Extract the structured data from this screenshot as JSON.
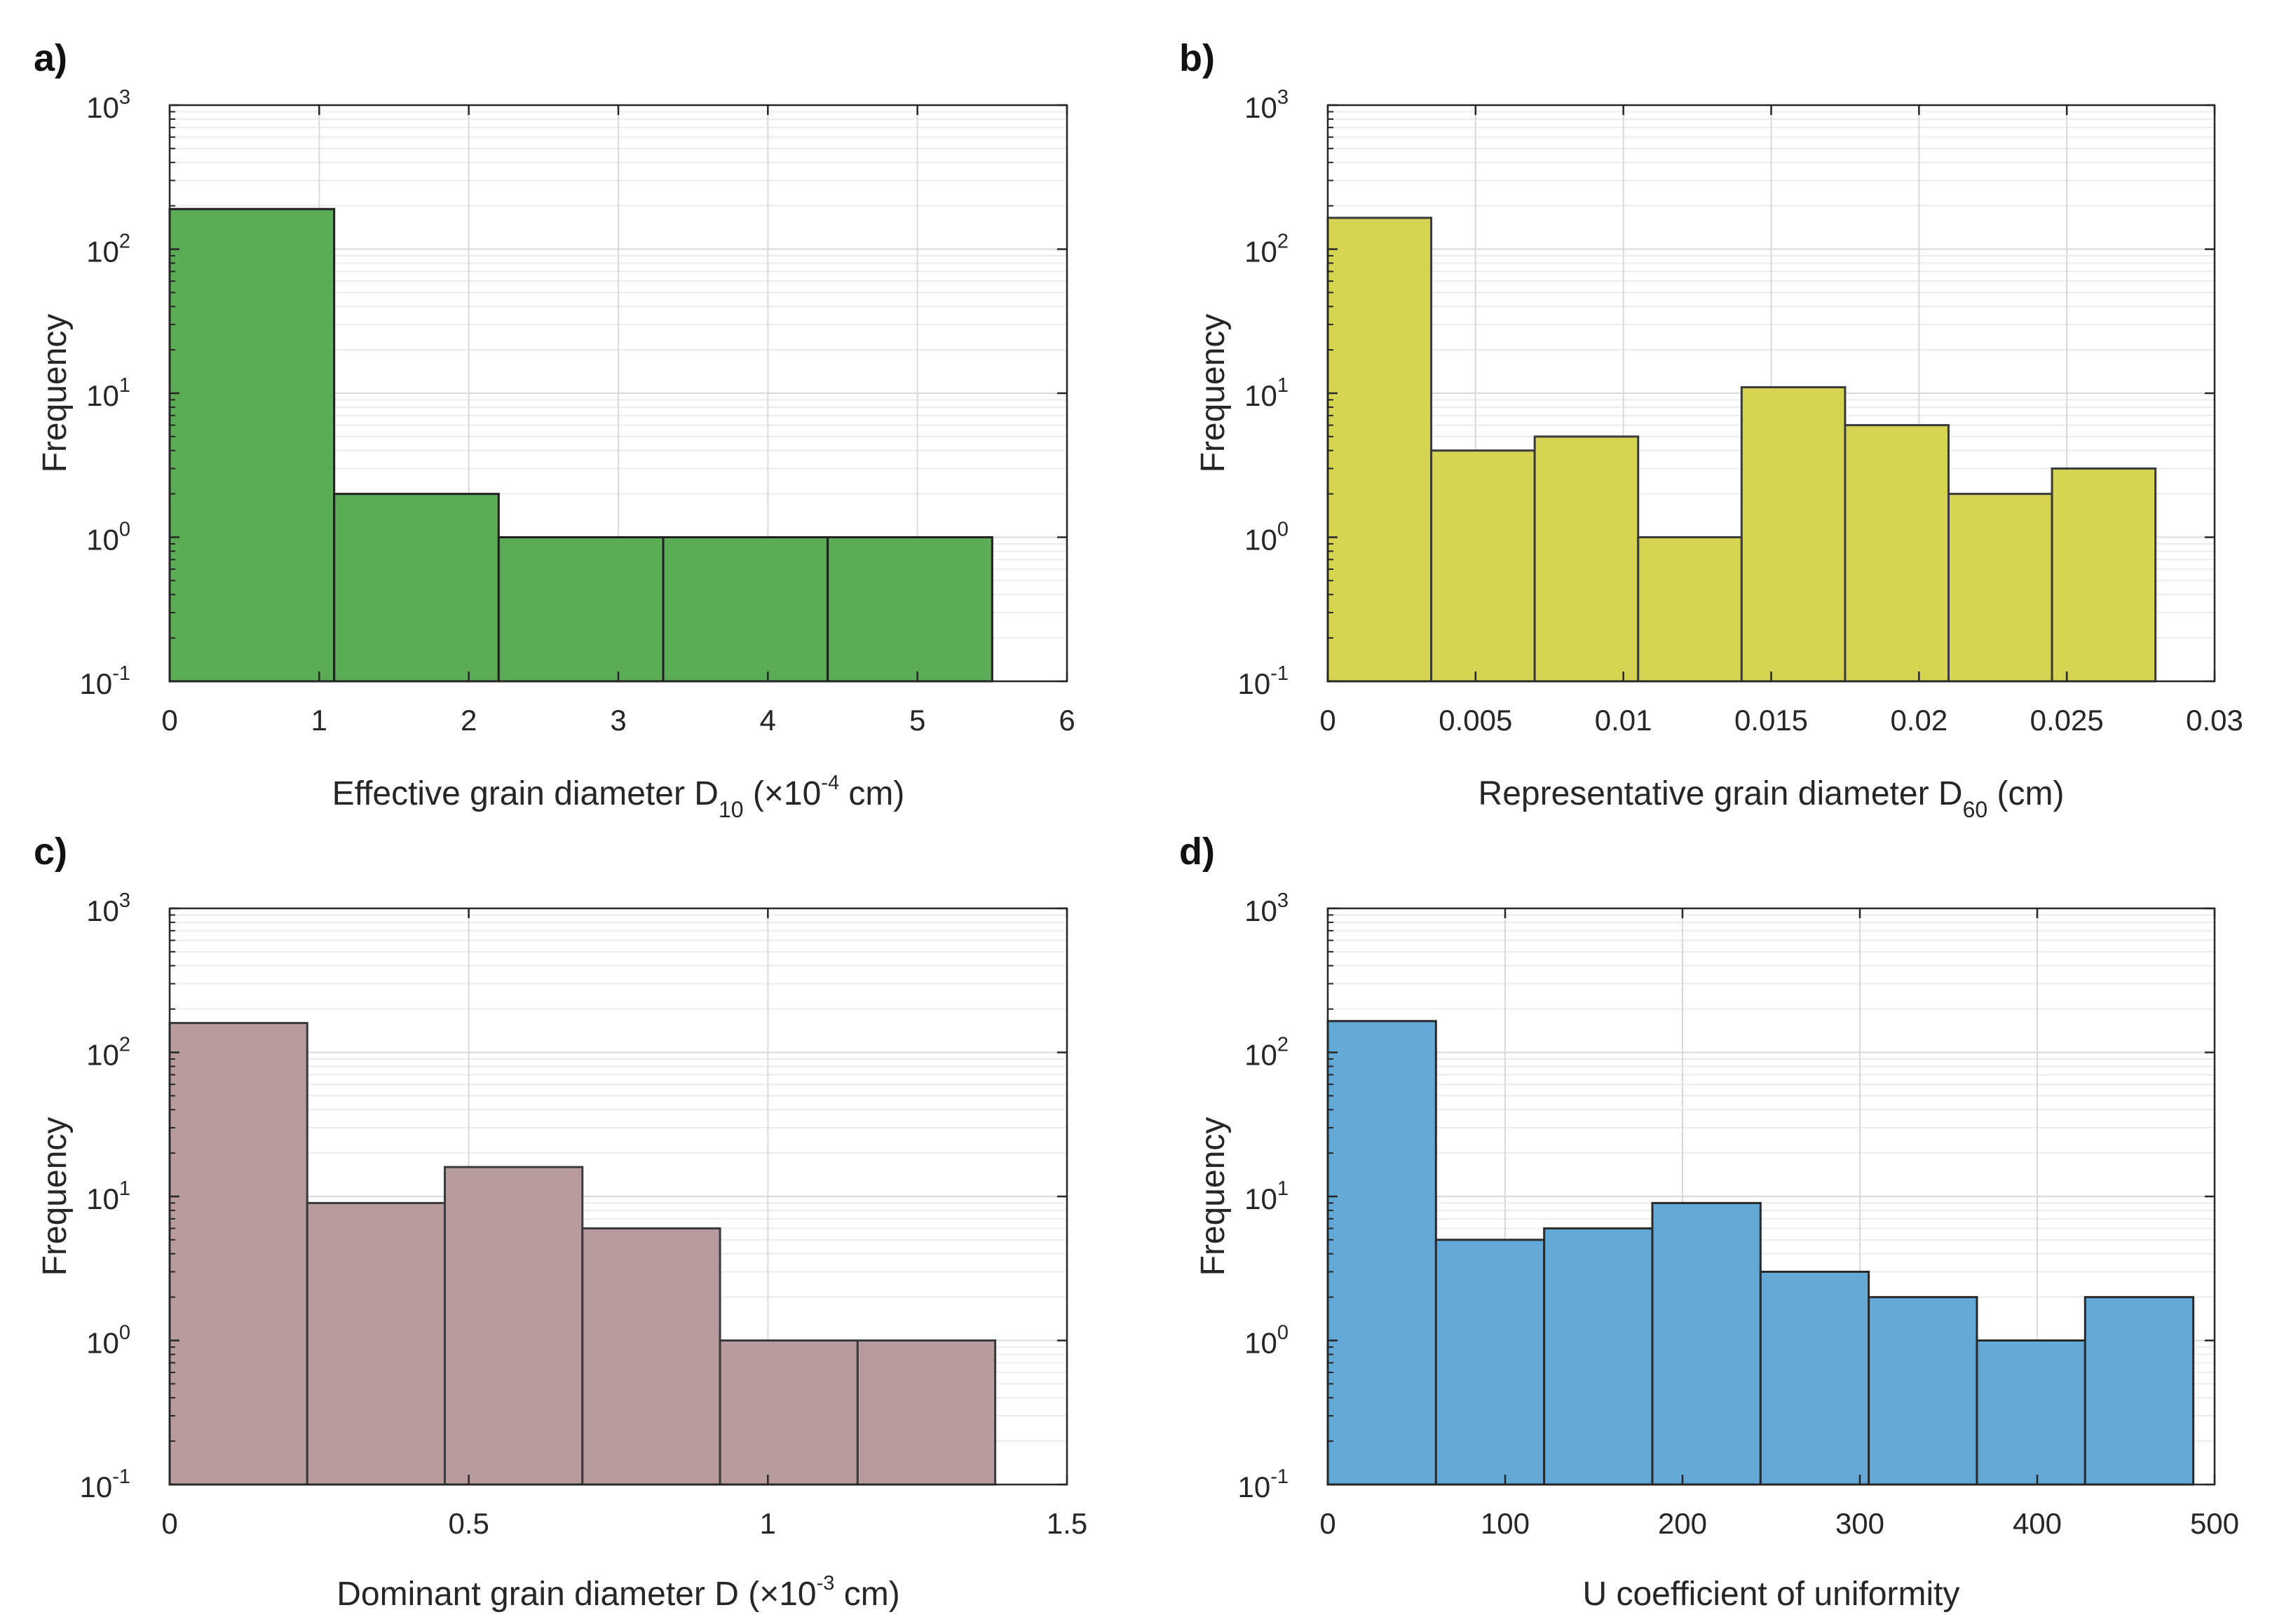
{
  "chart_data": [
    {
      "panel": "a)",
      "type": "bar",
      "yscale": "log",
      "ylim": [
        0.1,
        1000
      ],
      "xlim": [
        0,
        6
      ],
      "xticks": [
        0,
        1,
        2,
        3,
        4,
        5,
        6
      ],
      "xtick_labels": [
        "0",
        "1",
        "2",
        "3",
        "4",
        "5",
        "6"
      ],
      "ylabel": "Frequency",
      "xlabel": {
        "main": "Effective grain diameter D",
        "sub": "10",
        "pre": " (",
        "times": "×",
        "base": "10",
        "exp": "-4",
        "unit": " cm",
        "post": ")"
      },
      "color": "#5cab57",
      "edge": "#202020",
      "bins": [
        {
          "from": 0,
          "to": 1.1,
          "count": 190
        },
        {
          "from": 1.1,
          "to": 2.2,
          "count": 2
        },
        {
          "from": 2.2,
          "to": 3.3,
          "count": 1
        },
        {
          "from": 3.3,
          "to": 4.4,
          "count": 1
        },
        {
          "from": 4.4,
          "to": 5.5,
          "count": 1
        }
      ]
    },
    {
      "panel": "b)",
      "type": "bar",
      "yscale": "log",
      "ylim": [
        0.1,
        1000
      ],
      "xlim": [
        0,
        0.03
      ],
      "xticks": [
        0,
        0.005,
        0.01,
        0.015,
        0.02,
        0.025,
        0.03
      ],
      "xtick_labels": [
        "0",
        "0.005",
        "0.01",
        "0.015",
        "0.02",
        "0.025",
        "0.03"
      ],
      "ylabel": "Frequency",
      "xlabel": {
        "main": "Representative grain diameter D",
        "sub": "60",
        "post": " (cm)"
      },
      "color": "#d6d553",
      "edge": "#3a3a3a",
      "bins": [
        {
          "from": 0,
          "to": 0.0035,
          "count": 165
        },
        {
          "from": 0.0035,
          "to": 0.007,
          "count": 4
        },
        {
          "from": 0.007,
          "to": 0.0105,
          "count": 5
        },
        {
          "from": 0.0105,
          "to": 0.014,
          "count": 1
        },
        {
          "from": 0.014,
          "to": 0.0175,
          "count": 11
        },
        {
          "from": 0.0175,
          "to": 0.021,
          "count": 6
        },
        {
          "from": 0.021,
          "to": 0.0245,
          "count": 2
        },
        {
          "from": 0.0245,
          "to": 0.028,
          "count": 3
        }
      ]
    },
    {
      "panel": "c)",
      "type": "bar",
      "yscale": "log",
      "ylim": [
        0.1,
        1000
      ],
      "xlim": [
        0,
        1.5
      ],
      "xticks": [
        0,
        0.5,
        1,
        1.5
      ],
      "xtick_labels": [
        "0",
        "0.5",
        "1",
        "1.5"
      ],
      "ylabel": "Frequency",
      "xlabel": {
        "main": "Dominant grain diameter D",
        "pre": " (",
        "times": "×",
        "base": "10",
        "exp": "-3",
        "unit": " cm",
        "post": ")"
      },
      "color": "#b89b9c",
      "edge": "#3a3a3a",
      "bins": [
        {
          "from": 0,
          "to": 0.23,
          "count": 160
        },
        {
          "from": 0.23,
          "to": 0.46,
          "count": 9
        },
        {
          "from": 0.46,
          "to": 0.69,
          "count": 16
        },
        {
          "from": 0.69,
          "to": 0.92,
          "count": 6
        },
        {
          "from": 0.92,
          "to": 1.15,
          "count": 1
        },
        {
          "from": 1.15,
          "to": 1.38,
          "count": 1
        }
      ]
    },
    {
      "panel": "d)",
      "type": "bar",
      "yscale": "log",
      "ylim": [
        0.1,
        1000
      ],
      "xlim": [
        0,
        500
      ],
      "xticks": [
        0,
        100,
        200,
        300,
        400,
        500
      ],
      "xtick_labels": [
        "0",
        "100",
        "200",
        "300",
        "400",
        "500"
      ],
      "ylabel": "Frequency",
      "xlabel": {
        "main": "U coefficient of uniformity"
      },
      "color": "#62a9d8",
      "edge": "#2a2a2a",
      "bins": [
        {
          "from": 0,
          "to": 61,
          "count": 165
        },
        {
          "from": 61,
          "to": 122,
          "count": 5
        },
        {
          "from": 122,
          "to": 183,
          "count": 6
        },
        {
          "from": 183,
          "to": 244,
          "count": 9
        },
        {
          "from": 244,
          "to": 305,
          "count": 3
        },
        {
          "from": 305,
          "to": 366,
          "count": 2
        },
        {
          "from": 366,
          "to": 427,
          "count": 1
        },
        {
          "from": 427,
          "to": 488,
          "count": 2
        }
      ]
    }
  ],
  "y_tick_labels": [
    {
      "base": "10",
      "exp": "-1"
    },
    {
      "base": "10",
      "exp": "0"
    },
    {
      "base": "10",
      "exp": "1"
    },
    {
      "base": "10",
      "exp": "2"
    },
    {
      "base": "10",
      "exp": "3"
    }
  ]
}
